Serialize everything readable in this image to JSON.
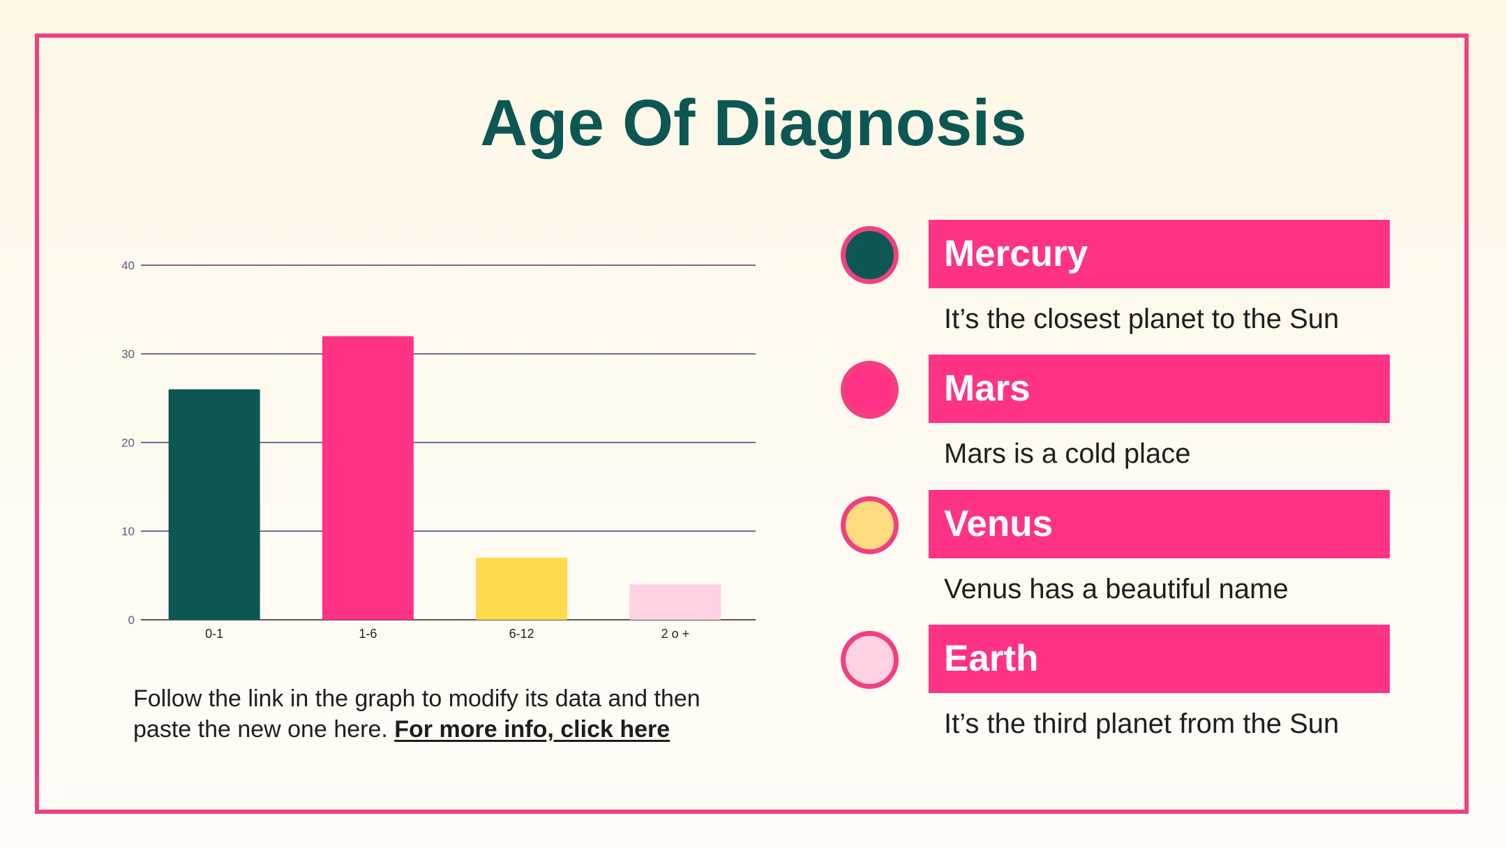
{
  "slide": {
    "title": "Age Of Diagnosis",
    "note": {
      "text": "Follow the link in the graph to modify its data and then paste the new one here. ",
      "link_text": "For more info, click here"
    },
    "colors": {
      "frame": "#f1407f",
      "title": "#0c5753",
      "label_bg": "#fe3386"
    }
  },
  "legend": [
    {
      "label": "Mercury",
      "description": "It’s the closest planet to the Sun",
      "color": "#0c5753"
    },
    {
      "label": "Mars",
      "description": "Mars is a cold place",
      "color": "#fe3386"
    },
    {
      "label": "Venus",
      "description": "Venus has a beautiful name",
      "color": "#fedb7e"
    },
    {
      "label": "Earth",
      "description": "It’s the third planet from the Sun",
      "color": "#fed1e3"
    }
  ],
  "chart_data": {
    "type": "bar",
    "categories": [
      "0-1",
      "1-6",
      "6-12",
      "2 o +"
    ],
    "values": [
      26,
      32,
      7,
      4
    ],
    "colors": [
      "#0c5753",
      "#fe3386",
      "#fedb4d",
      "#fed1e3"
    ],
    "yticks": [
      0,
      10,
      20,
      30,
      40
    ],
    "ylim": [
      0,
      40
    ],
    "grid": true,
    "gridline_color": "#3d3d7a"
  }
}
